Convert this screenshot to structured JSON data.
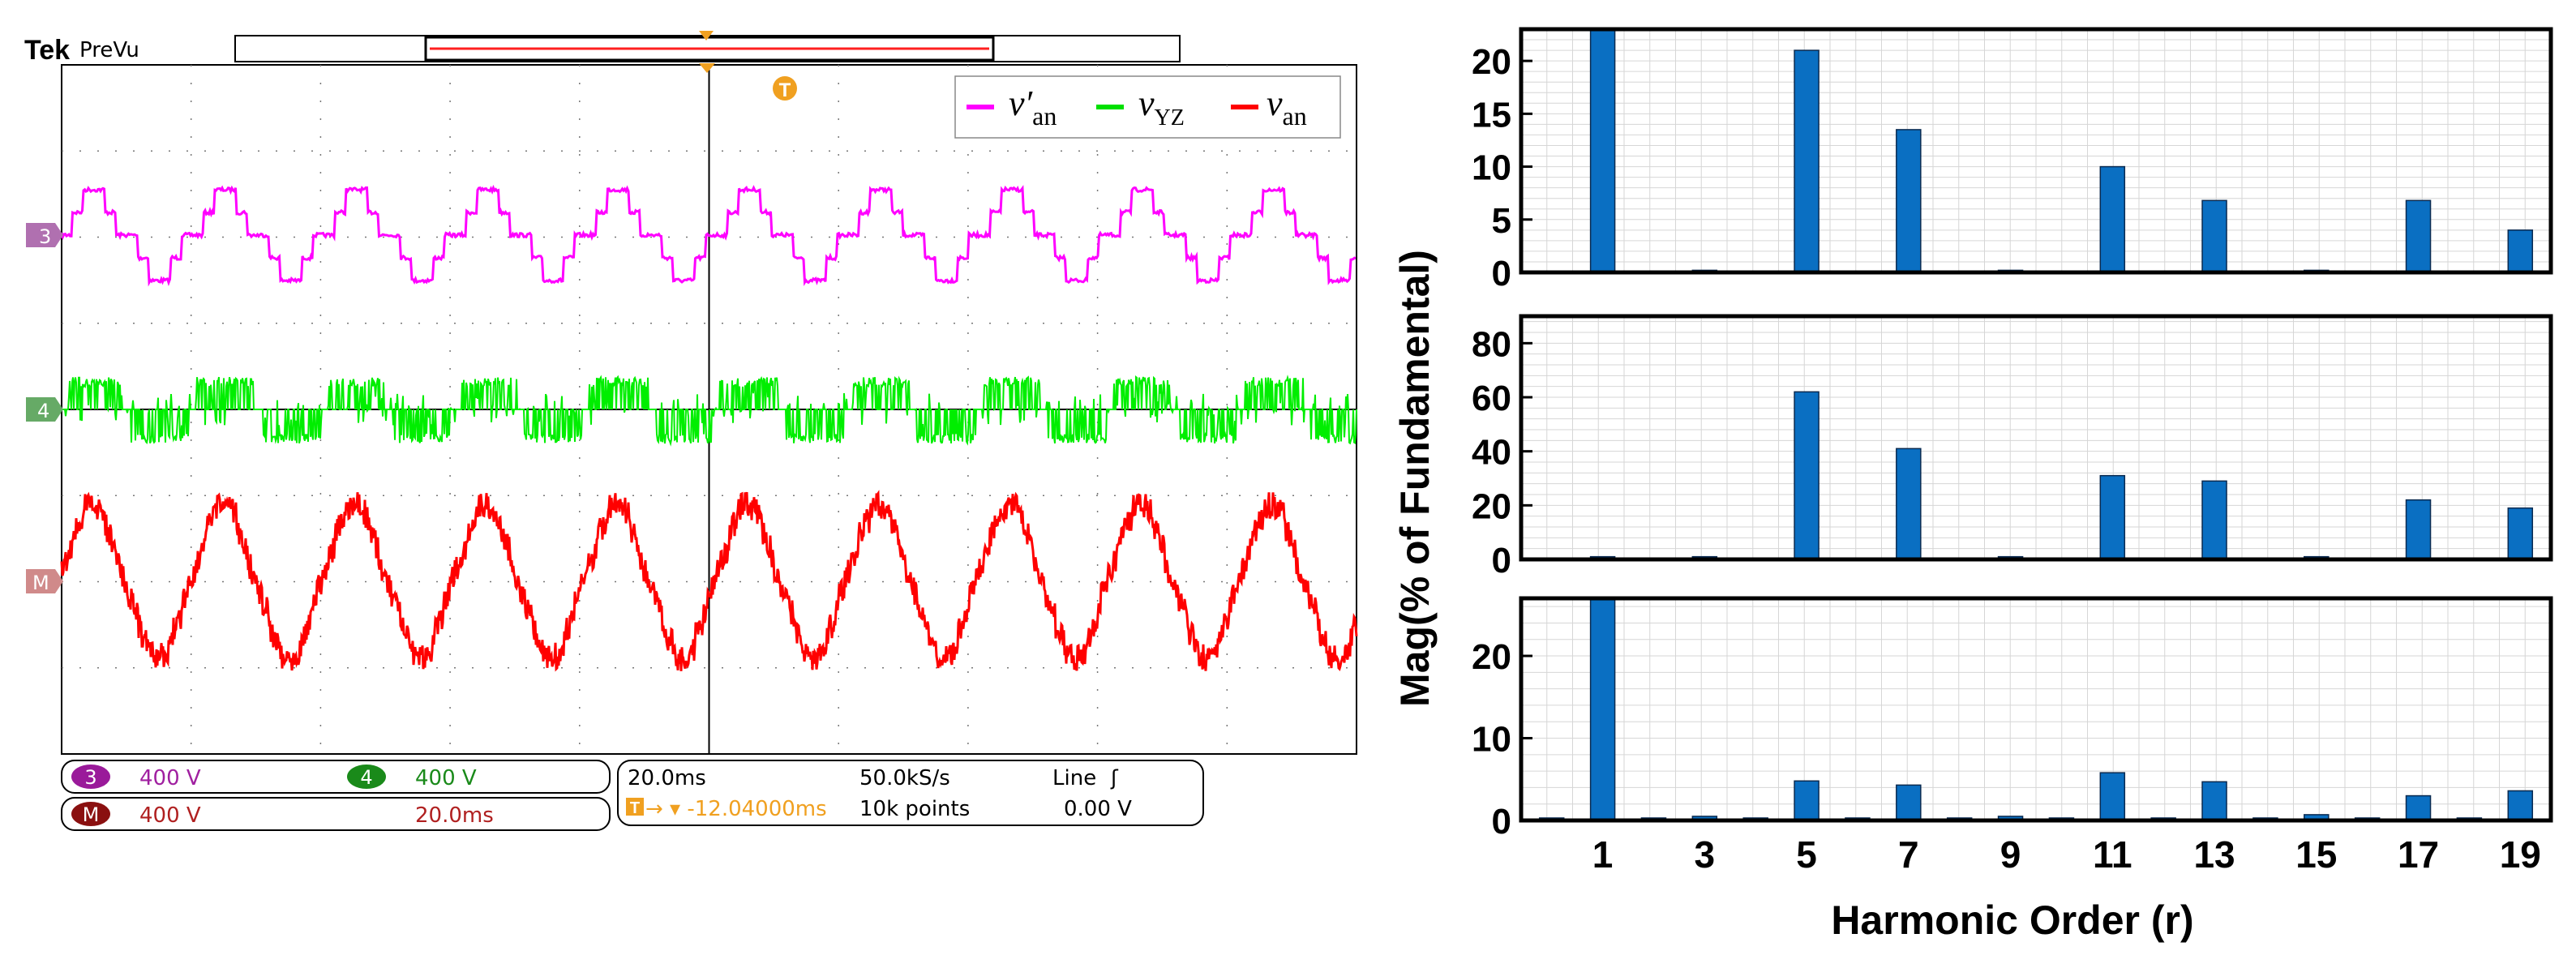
{
  "scope": {
    "brand": "Tek",
    "mode": "PreVu",
    "trigger_marker": "T",
    "channels": [
      {
        "id": "3",
        "label": "3",
        "scale": "400 V",
        "color": "#cc33cc"
      },
      {
        "id": "4",
        "label": "4",
        "scale": "400 V",
        "color": "#1aa01a"
      },
      {
        "id": "M",
        "label": "M",
        "scale": "400 V",
        "timebase": "20.0ms",
        "color": "#b02020"
      }
    ],
    "horizontal": {
      "scale": "20.0ms",
      "sample_rate": "50.0kS/s",
      "trigger_source": "Line",
      "trigger_symbol": "ʃ",
      "position": "→ ▾ -12.04000ms",
      "record_length": "10k points",
      "trigger_level": "0.00 V"
    },
    "legend": [
      {
        "symbol": "v′",
        "sub": "an",
        "color": "#ff00ff"
      },
      {
        "symbol": "v",
        "sub": "YZ",
        "color": "#00e000"
      },
      {
        "symbol": "v",
        "sub": "an",
        "color": "#ff0000"
      }
    ],
    "trace_colors": {
      "ch3": "#ff00ff",
      "ch4": "#00ee00",
      "math": "#ff0000"
    }
  },
  "chart_data": [
    {
      "type": "bar",
      "categories": [
        1,
        2,
        3,
        4,
        5,
        6,
        7,
        8,
        9,
        10,
        11,
        12,
        13,
        14,
        15,
        16,
        17,
        18,
        19
      ],
      "values": [
        23,
        0,
        0.2,
        0,
        21,
        0,
        13.5,
        0,
        0.2,
        0,
        10,
        0,
        6.8,
        0,
        0.2,
        0,
        6.8,
        0,
        4
      ],
      "ylim": [
        0,
        23
      ],
      "yticks": [
        0,
        5,
        10,
        15,
        20
      ],
      "bar_color": "#0a6fc2"
    },
    {
      "type": "bar",
      "categories": [
        1,
        2,
        3,
        4,
        5,
        6,
        7,
        8,
        9,
        10,
        11,
        12,
        13,
        14,
        15,
        16,
        17,
        18,
        19
      ],
      "values": [
        1,
        0,
        1,
        0,
        62,
        0,
        41,
        0,
        1,
        0,
        31,
        0,
        29,
        0,
        1,
        0,
        22,
        0,
        19
      ],
      "ylim": [
        0,
        90
      ],
      "yticks": [
        0,
        20,
        40,
        60,
        80
      ],
      "bar_color": "#0a6fc2"
    },
    {
      "type": "bar",
      "categories": [
        0,
        1,
        2,
        3,
        4,
        5,
        6,
        7,
        8,
        9,
        10,
        11,
        12,
        13,
        14,
        15,
        16,
        17,
        18,
        19
      ],
      "values": [
        0.3,
        27.5,
        0.3,
        0.5,
        0.3,
        4.8,
        0.3,
        4.3,
        0.3,
        0.5,
        0.3,
        5.8,
        0.3,
        4.7,
        0.3,
        0.7,
        0.3,
        3,
        0.3,
        3.6
      ],
      "ylim": [
        0,
        27
      ],
      "yticks": [
        0,
        10,
        20
      ],
      "bar_color": "#0a6fc2"
    }
  ],
  "harmonics": {
    "xlabel": "Harmonic Order (r)",
    "ylabel": "Mag(% of Fundamental)",
    "xticks": [
      "1",
      "3",
      "5",
      "7",
      "9",
      "11",
      "13",
      "15",
      "17",
      "19"
    ]
  }
}
